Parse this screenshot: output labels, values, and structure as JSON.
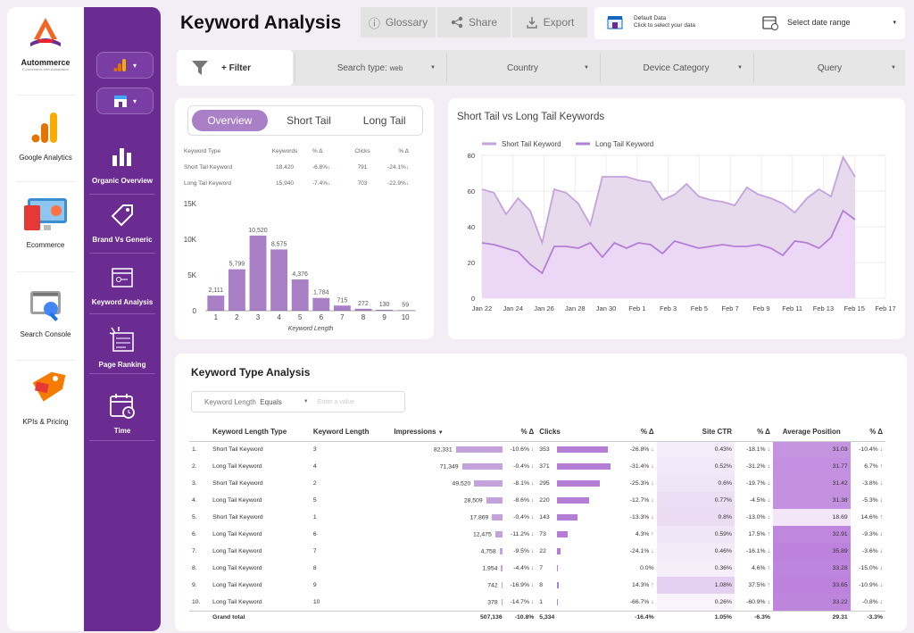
{
  "brand": {
    "name": "Autommerce",
    "tagline": "E-commerce with Automation"
  },
  "left_nav": [
    {
      "label": "Google Analytics"
    },
    {
      "label": "Ecommerce"
    },
    {
      "label": "Search Console"
    },
    {
      "label": "KPIs & Pricing"
    }
  ],
  "page_nav": [
    {
      "label": "Organic Overview"
    },
    {
      "label": "Brand Vs Generic"
    },
    {
      "label": "Keyword Analysis"
    },
    {
      "label": "Page Ranking"
    },
    {
      "label": "Time"
    }
  ],
  "header": {
    "title": "Keyword Analysis",
    "glossary": "Glossary",
    "share": "Share",
    "export": "Export"
  },
  "data_source": {
    "title": "Default Data",
    "subtitle": "Click to select your data"
  },
  "date_range": {
    "label": "Select date range"
  },
  "filters": {
    "add_filter": "+ Filter",
    "search_type": {
      "label": "Search type:",
      "value": "web"
    },
    "country": "Country",
    "device": "Device Category",
    "query": "Query"
  },
  "overview": {
    "tabs": [
      "Overview",
      "Short Tail",
      "Long Tail"
    ],
    "active_tab": 0,
    "table_headers": [
      "Keyword Type",
      "Keywords",
      "% Δ",
      "Clicks",
      "% Δ"
    ],
    "rows": [
      {
        "type": "Short Tail Keyword",
        "keywords": "18,420",
        "kw_delta": "-6.8%",
        "clicks": "791",
        "cl_delta": "-24.1%"
      },
      {
        "type": "Long Tail Keyword",
        "keywords": "15,940",
        "kw_delta": "-7.4%",
        "clicks": "703",
        "cl_delta": "-22.9%"
      }
    ]
  },
  "colors": {
    "primary": "#6a2c91",
    "bar": "#a97fc6",
    "accent": "#b47ed6",
    "red": "#e53935",
    "green": "#43a047"
  },
  "chart_data": [
    {
      "type": "bar",
      "title": "",
      "xlabel": "Keyword Length",
      "ylabel": "",
      "y_ticks": [
        "0",
        "5K",
        "10K",
        "15K"
      ],
      "ylim": [
        0,
        15000
      ],
      "categories": [
        "1",
        "2",
        "3",
        "4",
        "5",
        "6",
        "7",
        "8",
        "9",
        "10"
      ],
      "values": [
        2111,
        5799,
        10520,
        8575,
        4376,
        1784,
        715,
        272,
        130,
        59
      ],
      "labels": [
        "2,111",
        "5,799",
        "10,520",
        "8,575",
        "4,376",
        "1,784",
        "715",
        "272",
        "130",
        "59"
      ]
    },
    {
      "type": "area",
      "title": "Short Tail vs Long Tail Keywords",
      "xlabel": "",
      "ylabel": "",
      "ylim": [
        0,
        80
      ],
      "y_ticks": [
        "0",
        "20",
        "40",
        "60",
        "80"
      ],
      "x_ticks": [
        "Jan 22",
        "Jan 24",
        "Jan 26",
        "Jan 28",
        "Jan 30",
        "Feb 1",
        "Feb 3",
        "Feb 5",
        "Feb 7",
        "Feb 9",
        "Feb 11",
        "Feb 13",
        "Feb 15",
        "Feb 17"
      ],
      "legend": "top-left",
      "series": [
        {
          "name": "Short Tail Keyword",
          "color": "#c4a3dc",
          "values": [
            61,
            59,
            47,
            56,
            49,
            31,
            61,
            59,
            53,
            41,
            68,
            68,
            68,
            66,
            65,
            55,
            58,
            64,
            57,
            55,
            54,
            52,
            62,
            58,
            56,
            53,
            48,
            56,
            61,
            57,
            79,
            68
          ]
        },
        {
          "name": "Long Tail Keyword",
          "color": "#b47ed6",
          "values": [
            31,
            30,
            28,
            26,
            19,
            14,
            29,
            29,
            28,
            31,
            23,
            31,
            28,
            31,
            30,
            25,
            32,
            30,
            28,
            29,
            30,
            29,
            29,
            30,
            28,
            24,
            32,
            31,
            28,
            34,
            49,
            44
          ]
        }
      ]
    }
  ],
  "keyword_type_analysis": {
    "title": "Keyword Type Analysis",
    "filter_field": "Keyword Length",
    "filter_op": "Equals",
    "filter_placeholder": "Enter a value",
    "headers": [
      "Keyword Length Type",
      "Keyword Length",
      "Impressions",
      "% Δ",
      "Clicks",
      "% Δ",
      "Site CTR",
      "% Δ",
      "Average Position",
      "% Δ"
    ],
    "rows": [
      {
        "n": "1.",
        "type": "Short Tail Keyword",
        "len": "3",
        "imp": "82,331",
        "imp_v": 82331,
        "imp_d": "-10.6%",
        "cl": "353",
        "cl_v": 353,
        "cl_d": "-26.8%",
        "ctr": "0.43%",
        "ctr_d": "-18.1%",
        "pos": "31.03",
        "pos_d": "-10.4%"
      },
      {
        "n": "2.",
        "type": "Long Tail Keyword",
        "len": "4",
        "imp": "71,349",
        "imp_v": 71349,
        "imp_d": "-0.4%",
        "cl": "371",
        "cl_v": 371,
        "cl_d": "-31.4%",
        "ctr": "0.52%",
        "ctr_d": "-31.2%",
        "pos": "31.77",
        "pos_d": "6.7%"
      },
      {
        "n": "3.",
        "type": "Short Tail Keyword",
        "len": "2",
        "imp": "49,520",
        "imp_v": 49520,
        "imp_d": "-8.1%",
        "cl": "295",
        "cl_v": 295,
        "cl_d": "-25.3%",
        "ctr": "0.6%",
        "ctr_d": "-19.7%",
        "pos": "31.42",
        "pos_d": "-3.8%"
      },
      {
        "n": "4.",
        "type": "Long Tail Keyword",
        "len": "5",
        "imp": "28,509",
        "imp_v": 28509,
        "imp_d": "-8.6%",
        "cl": "220",
        "cl_v": 220,
        "cl_d": "-12.7%",
        "ctr": "0.77%",
        "ctr_d": "-4.5%",
        "pos": "31.38",
        "pos_d": "-5.3%"
      },
      {
        "n": "5.",
        "type": "Short Tail Keyword",
        "len": "1",
        "imp": "17,869",
        "imp_v": 17869,
        "imp_d": "-0.4%",
        "cl": "143",
        "cl_v": 143,
        "cl_d": "-13.3%",
        "ctr": "0.8%",
        "ctr_d": "-13.0%",
        "pos": "18.69",
        "pos_d": "14.6%"
      },
      {
        "n": "6.",
        "type": "Long Tail Keyword",
        "len": "6",
        "imp": "12,475",
        "imp_v": 12475,
        "imp_d": "-11.2%",
        "cl": "73",
        "cl_v": 73,
        "cl_d": "4.3%",
        "ctr": "0.59%",
        "ctr_d": "17.5%",
        "pos": "32.91",
        "pos_d": "-9.3%"
      },
      {
        "n": "7.",
        "type": "Long Tail Keyword",
        "len": "7",
        "imp": "4,758",
        "imp_v": 4758,
        "imp_d": "-9.5%",
        "cl": "22",
        "cl_v": 22,
        "cl_d": "-24.1%",
        "ctr": "0.46%",
        "ctr_d": "-16.1%",
        "pos": "35.89",
        "pos_d": "-3.6%"
      },
      {
        "n": "8.",
        "type": "Long Tail Keyword",
        "len": "8",
        "imp": "1,954",
        "imp_v": 1954,
        "imp_d": "-4.4%",
        "cl": "7",
        "cl_v": 7,
        "cl_d": "0.0%",
        "ctr": "0.36%",
        "ctr_d": "4.6%",
        "pos": "33.28",
        "pos_d": "-15.0%"
      },
      {
        "n": "9.",
        "type": "Long Tail Keyword",
        "len": "9",
        "imp": "742",
        "imp_v": 742,
        "imp_d": "-16.9%",
        "cl": "8",
        "cl_v": 8,
        "cl_d": "14.3%",
        "ctr": "1.08%",
        "ctr_d": "37.5%",
        "pos": "33.65",
        "pos_d": "-10.9%"
      },
      {
        "n": "10.",
        "type": "Long Tail Keyword",
        "len": "10",
        "imp": "378",
        "imp_v": 378,
        "imp_d": "-14.7%",
        "cl": "1",
        "cl_v": 1,
        "cl_d": "-66.7%",
        "ctr": "0.26%",
        "ctr_d": "-60.9%",
        "pos": "33.22",
        "pos_d": "-0.8%"
      }
    ],
    "total": {
      "label": "Grand total",
      "imp": "507,136",
      "imp_d": "-10.8%",
      "cl": "5,334",
      "cl_d": "-16.4%",
      "ctr": "1.05%",
      "ctr_d": "-6.3%",
      "pos": "29.31",
      "pos_d": "-3.3%"
    }
  }
}
